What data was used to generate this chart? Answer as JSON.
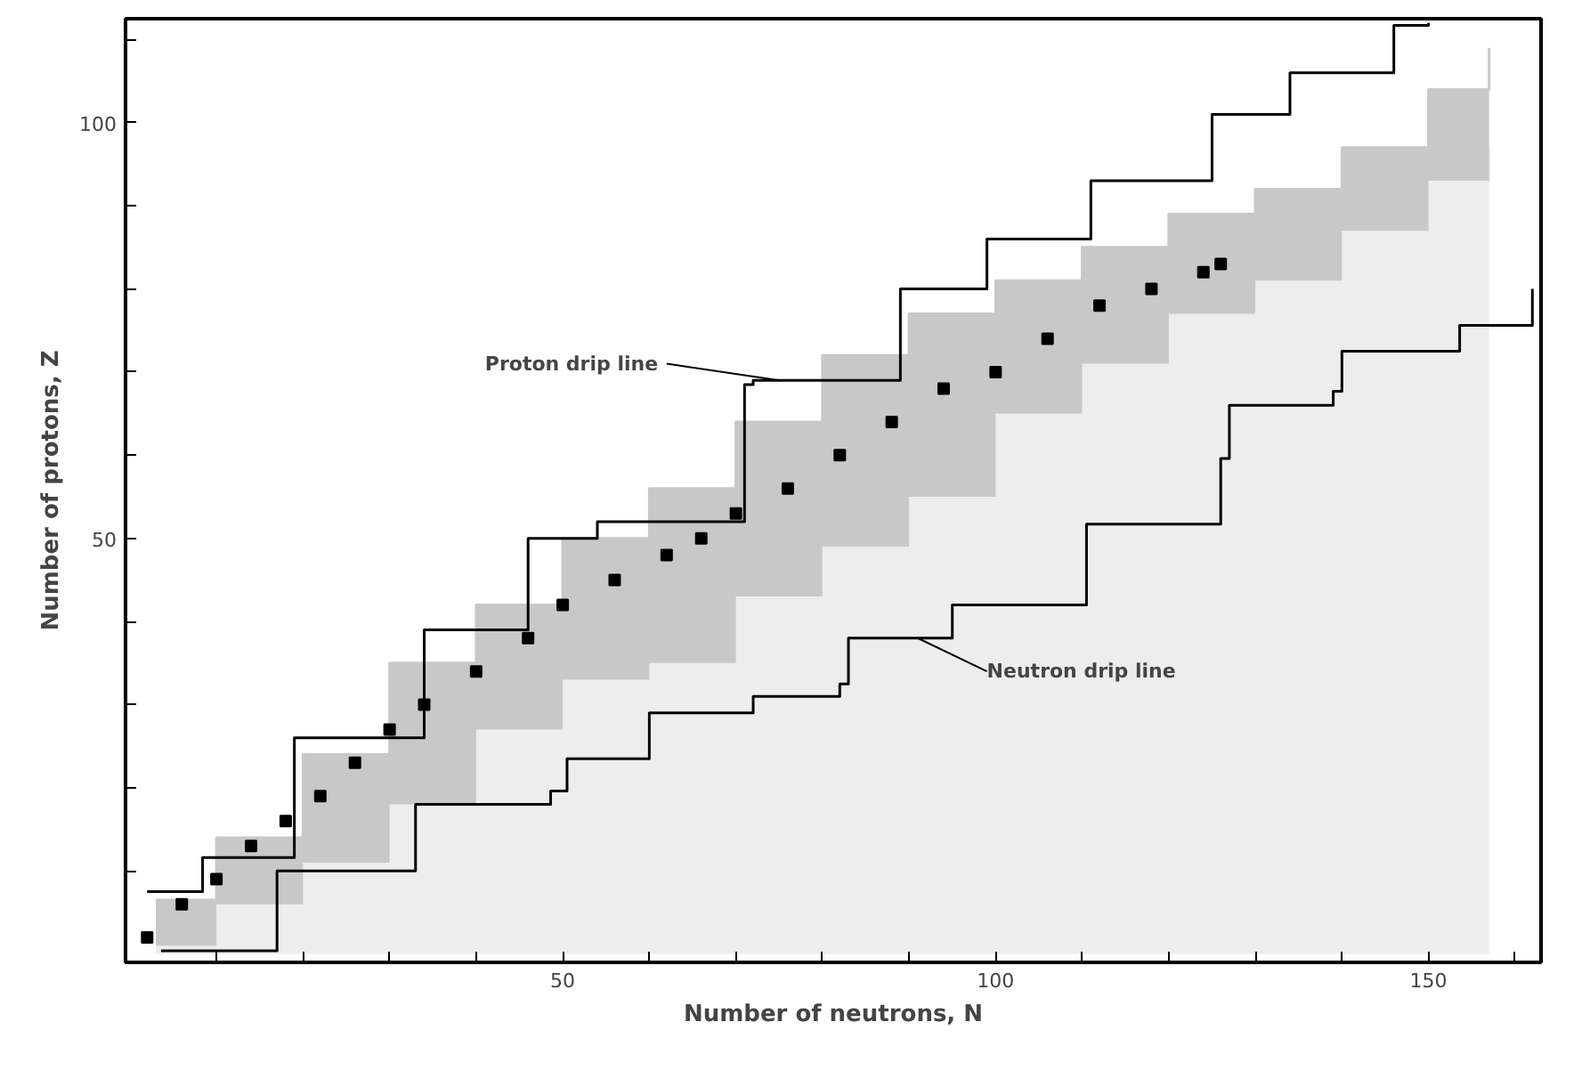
{
  "chart_data": {
    "type": "step",
    "xlabel": "Number of neutrons, N",
    "ylabel": "Number of protons, Z",
    "stacked": true,
    "xlim": [
      -0.5,
      163
    ],
    "ylim": [
      -1,
      112.5
    ],
    "xticks": [
      {
        "value": 10,
        "label": null
      },
      {
        "value": 20,
        "label": null
      },
      {
        "value": 30,
        "label": null
      },
      {
        "value": 40,
        "label": null
      },
      50,
      {
        "value": 60,
        "label": null
      },
      {
        "value": 70,
        "label": null
      },
      {
        "value": 80,
        "label": null
      },
      {
        "value": 90,
        "label": null
      },
      100,
      {
        "value": 110,
        "label": null
      },
      {
        "value": 120,
        "label": null
      },
      {
        "value": 130,
        "label": null
      },
      {
        "value": 140,
        "label": null
      },
      150,
      {
        "value": 160,
        "label": null
      }
    ],
    "yticks": [
      {
        "value": 10,
        "label": null
      },
      {
        "value": 20,
        "label": null
      },
      {
        "value": 30,
        "label": null
      },
      {
        "value": 40,
        "label": null
      },
      50,
      {
        "value": 60,
        "label": null
      },
      {
        "value": 70,
        "label": null
      },
      {
        "value": 80,
        "label": null
      },
      {
        "value": 90,
        "label": null
      },
      100,
      {
        "value": 110,
        "label": null
      }
    ],
    "grid": false,
    "series": [
      {
        "type": "area",
        "color": "#ededed",
        "x": [
          3,
          10,
          10,
          20,
          20,
          30,
          30,
          40,
          40,
          50,
          50,
          60,
          60,
          70,
          70,
          80,
          80,
          90,
          90,
          100,
          100,
          110,
          110,
          120,
          120,
          130,
          130,
          140,
          140,
          150,
          150,
          157,
          157
        ],
        "values": [
          1,
          1,
          6,
          6,
          11,
          11,
          18,
          18,
          27,
          27,
          33,
          33,
          35,
          35,
          43,
          43,
          49,
          49,
          55,
          55,
          65,
          65,
          71,
          71,
          77,
          77,
          81,
          81,
          87,
          87,
          93,
          93,
          97
        ]
      },
      {
        "type": "area",
        "color": "#c8c8c8",
        "x": [
          3,
          10,
          10,
          20,
          20,
          30,
          30,
          40,
          40,
          50,
          50,
          60,
          60,
          70,
          70,
          80,
          80,
          90,
          90,
          100,
          100,
          110,
          110,
          120,
          120,
          130,
          130,
          140,
          140,
          150,
          150,
          157,
          157
        ],
        "values": [
          5.5,
          5.5,
          8,
          8,
          13,
          13,
          17,
          17,
          15,
          15,
          17,
          17,
          21,
          21,
          21,
          21,
          23,
          23,
          22,
          22,
          16,
          16,
          14,
          14,
          12,
          12,
          11,
          11,
          10,
          10,
          11,
          11,
          12
        ]
      },
      {
        "color": "#000000",
        "x": [
          2,
          8.4,
          19,
          34,
          46,
          54,
          71,
          72,
          89,
          99,
          111,
          125,
          134,
          146,
          150
        ],
        "values": [
          7.5,
          11.6,
          26,
          39,
          50,
          52,
          68.5,
          69,
          80,
          86,
          93,
          101,
          106,
          111.7,
          112
        ]
      },
      {
        "color": "#000000",
        "x": [
          3.6,
          17,
          33,
          48.6,
          50.5,
          60,
          72,
          82,
          83,
          95,
          110.5,
          126,
          127,
          139,
          140,
          153.6,
          162
        ],
        "values": [
          0.4,
          10,
          18,
          19.6,
          23.5,
          29,
          31,
          32.5,
          38,
          42,
          51.7,
          59.6,
          66,
          67.7,
          72.5,
          75.6,
          80
        ]
      },
      {
        "type": "scatter",
        "color": "#000000",
        "marker": "square",
        "x": [
          2,
          6,
          10,
          14,
          18,
          22,
          26,
          30,
          34,
          40,
          46,
          50,
          56,
          62,
          66,
          70,
          76,
          82,
          88,
          94,
          100,
          106,
          112,
          118,
          124,
          126
        ],
        "values": [
          2,
          6,
          9,
          13,
          16,
          19,
          23,
          27,
          30,
          34,
          38,
          42,
          45,
          48,
          50,
          53,
          56,
          60,
          64,
          68,
          70,
          74,
          78,
          80,
          82,
          83
        ]
      }
    ],
    "annotations": [
      {
        "text": "Proton drip line",
        "x": 75,
        "y": 69
      },
      {
        "text": "Neutron drip line",
        "x": 91,
        "y": 38
      }
    ]
  }
}
